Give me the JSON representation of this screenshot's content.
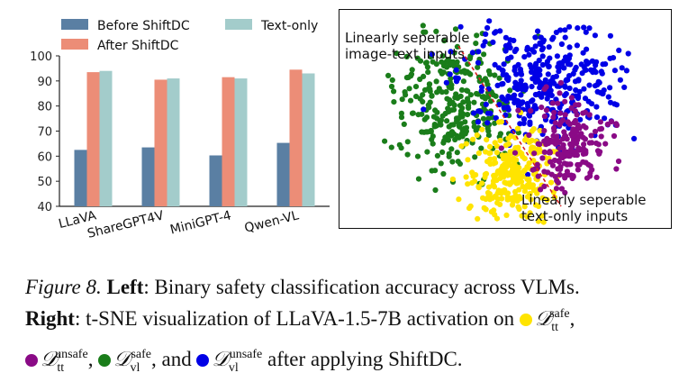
{
  "chart_data": [
    {
      "type": "bar",
      "categories": [
        "LLaVA",
        "ShareGPT4V",
        "MiniGPT-4",
        "Qwen-VL"
      ],
      "series": [
        {
          "name": "Before ShiftDC",
          "values": [
            62.5,
            63.5,
            60.3,
            65.3
          ],
          "color": "#5a7fa3"
        },
        {
          "name": "After ShiftDC",
          "values": [
            93.5,
            90.5,
            91.5,
            94.5
          ],
          "color": "#ec8d77"
        },
        {
          "name": "Text-only",
          "values": [
            94.0,
            91.0,
            91.0,
            93.0
          ],
          "color": "#a3cccb"
        }
      ],
      "y_ticks": [
        "40",
        "50",
        "60",
        "70",
        "80",
        "90",
        "100"
      ],
      "ylim": [
        40,
        100
      ],
      "legend_position": "top",
      "grid": false
    },
    {
      "type": "scatter",
      "clusters": [
        {
          "color": "#ffe400",
          "description_key": "tt-safe"
        },
        {
          "color": "#8a0a86",
          "description_key": "tt-unsafe"
        },
        {
          "color": "#1a7d1a",
          "description_key": "vl-safe"
        },
        {
          "color": "#0000e6",
          "description_key": "vl-unsafe"
        }
      ],
      "annotations": [
        "Linearly seperable\nimage-text inputs",
        "Linearly seperable\ntext-only inputs"
      ],
      "separator_line": "red dashed"
    }
  ],
  "right_panel": {
    "anno_image_text_line1": "Linearly seperable",
    "anno_image_text_line2": "image-text inputs",
    "anno_text_only_line1": "Linearly seperable",
    "anno_text_only_line2": "text-only inputs"
  },
  "caption": {
    "figure_label": "Figure 8.",
    "left_word": "Left",
    "left_text": ": Binary safety classification accuracy across VLMs.",
    "right_word": "Right",
    "right_text": ": t-SNE visualization of LLaVA-1.5-7B activation on",
    "math_D": "𝒟",
    "sub_tt": "tt",
    "sub_vl": "vl",
    "sup_safe": "safe",
    "sup_unsafe": "unsafe",
    "comma": ",",
    "and_text": ", and",
    "tail_text": "after applying ShiftDC."
  }
}
